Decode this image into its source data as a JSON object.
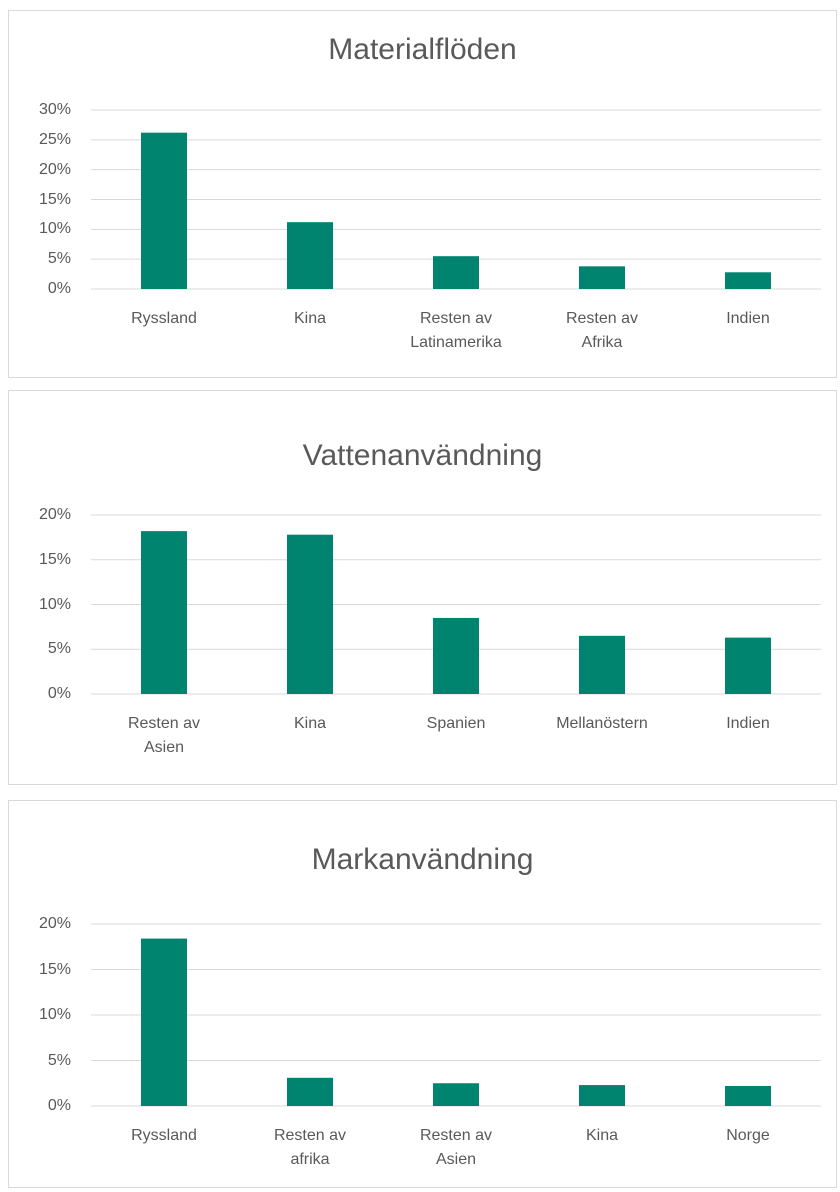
{
  "chart_data": [
    {
      "type": "bar",
      "title": "Materialflöden",
      "categories": [
        "Ryssland",
        "Kina",
        "Resten av Latinamerika",
        "Resten av Afrika",
        "Indien"
      ],
      "values": [
        26.2,
        11.2,
        5.5,
        3.8,
        2.8
      ],
      "color": "#00846f",
      "ylim": [
        0,
        30
      ],
      "yticks": [
        {
          "value": 0,
          "label": "0%"
        },
        {
          "value": 5,
          "label": "5%"
        },
        {
          "value": 10,
          "label": "10%"
        },
        {
          "value": 15,
          "label": "15%"
        },
        {
          "value": 20,
          "label": "20%"
        },
        {
          "value": 25,
          "label": "25%"
        },
        {
          "value": 30,
          "label": "30%"
        }
      ],
      "grid": true
    },
    {
      "type": "bar",
      "title": "Vattenanvändning",
      "categories": [
        "Resten av Asien",
        "Kina",
        "Spanien",
        "Mellanöstern",
        "Indien"
      ],
      "values": [
        18.2,
        17.8,
        8.5,
        6.5,
        6.3
      ],
      "color": "#00846f",
      "ylim": [
        0,
        20
      ],
      "yticks": [
        {
          "value": 0,
          "label": "0%"
        },
        {
          "value": 5,
          "label": "5%"
        },
        {
          "value": 10,
          "label": "10%"
        },
        {
          "value": 15,
          "label": "15%"
        },
        {
          "value": 20,
          "label": "20%"
        }
      ],
      "grid": true
    },
    {
      "type": "bar",
      "title": "Markanvändning",
      "categories": [
        "Ryssland",
        "Resten av afrika",
        "Resten av Asien",
        "Kina",
        "Norge"
      ],
      "values": [
        18.4,
        3.1,
        2.5,
        2.3,
        2.2
      ],
      "color": "#00846f",
      "ylim": [
        0,
        20
      ],
      "yticks": [
        {
          "value": 0,
          "label": "0%"
        },
        {
          "value": 5,
          "label": "5%"
        },
        {
          "value": 10,
          "label": "10%"
        },
        {
          "value": 15,
          "label": "15%"
        },
        {
          "value": 20,
          "label": "20%"
        }
      ],
      "grid": true
    }
  ]
}
